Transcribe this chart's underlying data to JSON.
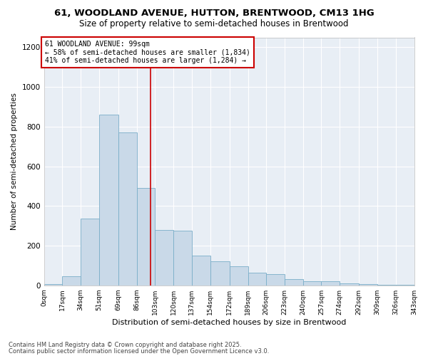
{
  "title1": "61, WOODLAND AVENUE, HUTTON, BRENTWOOD, CM13 1HG",
  "title2": "Size of property relative to semi-detached houses in Brentwood",
  "xlabel": "Distribution of semi-detached houses by size in Brentwood",
  "ylabel": "Number of semi-detached properties",
  "footnote1": "Contains HM Land Registry data © Crown copyright and database right 2025.",
  "footnote2": "Contains public sector information licensed under the Open Government Licence v3.0.",
  "annotation_title": "61 WOODLAND AVENUE: 99sqm",
  "annotation_line1": "← 58% of semi-detached houses are smaller (1,834)",
  "annotation_line2": "41% of semi-detached houses are larger (1,284) →",
  "property_value": 99,
  "bar_edges": [
    0,
    17,
    34,
    51,
    69,
    86,
    103,
    120,
    137,
    154,
    172,
    189,
    206,
    223,
    240,
    257,
    274,
    292,
    309,
    326,
    343
  ],
  "bar_heights": [
    5,
    45,
    335,
    860,
    770,
    490,
    280,
    275,
    150,
    120,
    95,
    65,
    55,
    30,
    20,
    20,
    10,
    5,
    2,
    1
  ],
  "bar_color": "#c9d9e8",
  "bar_edgecolor": "#7aaec8",
  "vline_color": "#cc0000",
  "vline_x": 99,
  "annotation_box_color": "#cc0000",
  "background_color": "#ffffff",
  "plot_bg_color": "#e8eef5",
  "grid_color": "#ffffff",
  "ylim": [
    0,
    1250
  ],
  "yticks": [
    0,
    200,
    400,
    600,
    800,
    1000,
    1200
  ]
}
